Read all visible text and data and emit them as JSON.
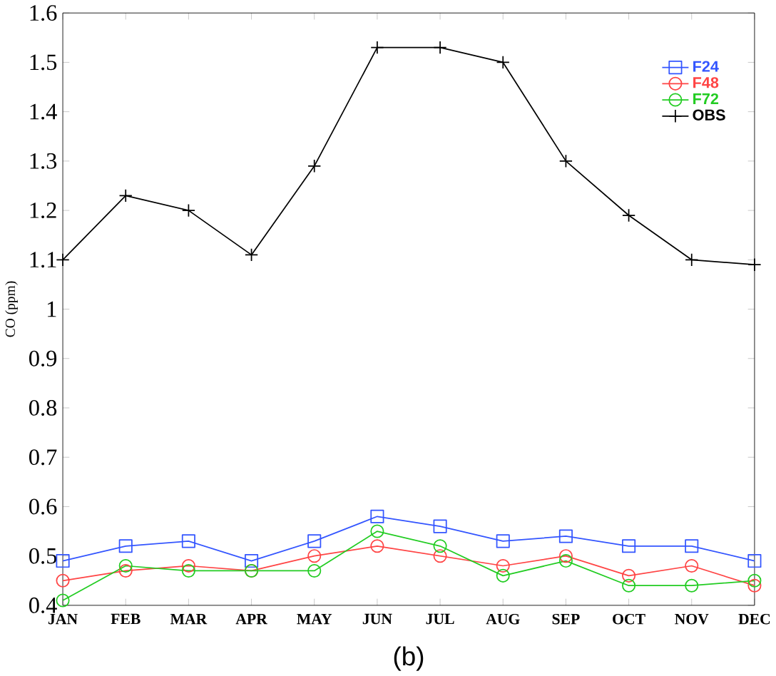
{
  "chart_data": {
    "type": "line",
    "ylabel": "CO (ppm)",
    "categories": [
      "JAN",
      "FEB",
      "MAR",
      "APR",
      "MAY",
      "JUN",
      "JUL",
      "AUG",
      "SEP",
      "OCT",
      "NOV",
      "DEC"
    ],
    "series": [
      {
        "name": "F24",
        "color": "#3355ff",
        "marker": "square",
        "values": [
          0.49,
          0.52,
          0.53,
          0.49,
          0.53,
          0.58,
          0.56,
          0.53,
          0.54,
          0.52,
          0.52,
          0.49
        ]
      },
      {
        "name": "F48",
        "color": "#ff4444",
        "marker": "circle",
        "values": [
          0.45,
          0.47,
          0.48,
          0.47,
          0.5,
          0.52,
          0.5,
          0.48,
          0.5,
          0.46,
          0.48,
          0.44
        ]
      },
      {
        "name": "F72",
        "color": "#22cc22",
        "marker": "circle",
        "values": [
          0.41,
          0.48,
          0.47,
          0.47,
          0.47,
          0.55,
          0.52,
          0.46,
          0.49,
          0.44,
          0.44,
          0.45
        ]
      },
      {
        "name": "OBS",
        "color": "#000000",
        "marker": "cross",
        "values": [
          1.1,
          1.23,
          1.2,
          1.11,
          1.29,
          1.53,
          1.53,
          1.5,
          1.3,
          1.19,
          1.1,
          1.09
        ]
      }
    ],
    "ylim": [
      0.4,
      1.6
    ],
    "yticks": [
      0.4,
      0.5,
      0.6,
      0.7,
      0.8,
      0.9,
      1,
      1.1,
      1.2,
      1.3,
      1.4,
      1.5,
      1.6
    ],
    "legend": "top right",
    "grid": false,
    "line_style": "solid",
    "annotations": [
      "(b)"
    ]
  }
}
